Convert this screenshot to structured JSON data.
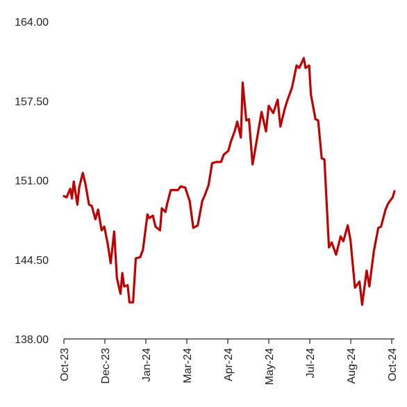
{
  "chart_data": {
    "type": "line",
    "title": "",
    "xlabel": "",
    "ylabel": "",
    "ylim": [
      138.0,
      164.0
    ],
    "y_ticks": [
      "164.00",
      "157.50",
      "151.00",
      "144.50",
      "138.00"
    ],
    "x_ticks": [
      "Oct-23",
      "Dec-23",
      "Jan-24",
      "Mar-24",
      "Apr-24",
      "May-24",
      "Jul-24",
      "Aug-24",
      "Oct-24"
    ],
    "grid": false,
    "line_color": "#c00000",
    "series": [
      {
        "x": [
          "2023-10-02",
          "2023-10-05",
          "2023-10-09",
          "2023-10-11",
          "2023-10-13",
          "2023-10-17",
          "2023-10-19",
          "2023-10-23",
          "2023-10-26",
          "2023-10-30",
          "2023-11-02",
          "2023-11-06",
          "2023-11-09",
          "2023-11-13",
          "2023-11-16",
          "2023-11-20",
          "2023-11-23",
          "2023-11-27",
          "2023-11-30",
          "2023-12-04",
          "2023-12-06",
          "2023-12-08",
          "2023-12-12",
          "2023-12-14",
          "2023-12-18",
          "2023-12-21",
          "2023-12-26",
          "2023-12-29",
          "2024-01-03",
          "2024-01-05",
          "2024-01-09",
          "2024-01-12",
          "2024-01-17",
          "2024-01-19",
          "2024-01-23",
          "2024-01-25",
          "2024-01-29",
          "2024-02-01",
          "2024-02-06",
          "2024-02-09",
          "2024-02-14",
          "2024-02-19",
          "2024-02-23",
          "2024-02-28",
          "2024-03-04",
          "2024-03-07",
          "2024-03-11",
          "2024-03-15",
          "2024-03-20",
          "2024-03-25",
          "2024-03-28",
          "2024-04-02",
          "2024-04-05",
          "2024-04-09",
          "2024-04-12",
          "2024-04-16",
          "2024-04-18",
          "2024-04-22",
          "2024-04-25",
          "2024-04-29",
          "2024-05-01",
          "2024-05-06",
          "2024-05-09",
          "2024-05-14",
          "2024-05-17",
          "2024-05-22",
          "2024-05-27",
          "2024-05-30",
          "2024-06-04",
          "2024-06-07",
          "2024-06-12",
          "2024-06-17",
          "2024-06-20",
          "2024-06-25",
          "2024-06-27",
          "2024-07-01",
          "2024-07-03",
          "2024-07-08",
          "2024-07-11",
          "2024-07-15",
          "2024-07-18",
          "2024-07-23",
          "2024-07-26",
          "2024-07-31",
          "2024-08-05",
          "2024-08-08",
          "2024-08-13",
          "2024-08-16",
          "2024-08-21",
          "2024-08-26",
          "2024-08-29",
          "2024-09-03",
          "2024-09-06",
          "2024-09-11",
          "2024-09-16",
          "2024-09-19",
          "2024-09-24",
          "2024-09-27",
          "2024-10-02",
          "2024-10-04"
        ],
        "values": [
          149.7,
          149.6,
          150.3,
          149.5,
          150.9,
          149.0,
          150.4,
          151.6,
          150.7,
          149.0,
          148.9,
          147.8,
          148.6,
          146.9,
          147.2,
          145.7,
          144.2,
          146.8,
          143.0,
          141.7,
          143.4,
          142.3,
          142.4,
          141.0,
          141.0,
          144.6,
          144.7,
          145.3,
          148.2,
          147.9,
          148.1,
          147.2,
          146.9,
          148.7,
          148.4,
          149.1,
          150.2,
          150.2,
          150.2,
          150.5,
          150.4,
          149.3,
          147.1,
          147.3,
          149.3,
          149.8,
          150.6,
          152.4,
          152.5,
          152.5,
          153.1,
          153.4,
          154.2,
          155.0,
          155.8,
          154.5,
          159.0,
          155.9,
          156.0,
          152.3,
          153.1,
          155.3,
          156.6,
          155.0,
          157.1,
          156.5,
          157.6,
          155.4,
          156.9,
          157.6,
          158.6,
          160.4,
          160.2,
          161.0,
          160.2,
          160.4,
          158.0,
          156.0,
          155.9,
          152.8,
          152.7,
          145.5,
          145.9,
          144.9,
          146.4,
          146.0,
          147.3,
          146.1,
          142.2,
          142.7,
          140.8,
          143.6,
          142.3,
          145.2,
          147.1,
          147.2,
          148.6,
          149.1,
          149.6,
          150.1
        ]
      }
    ]
  }
}
